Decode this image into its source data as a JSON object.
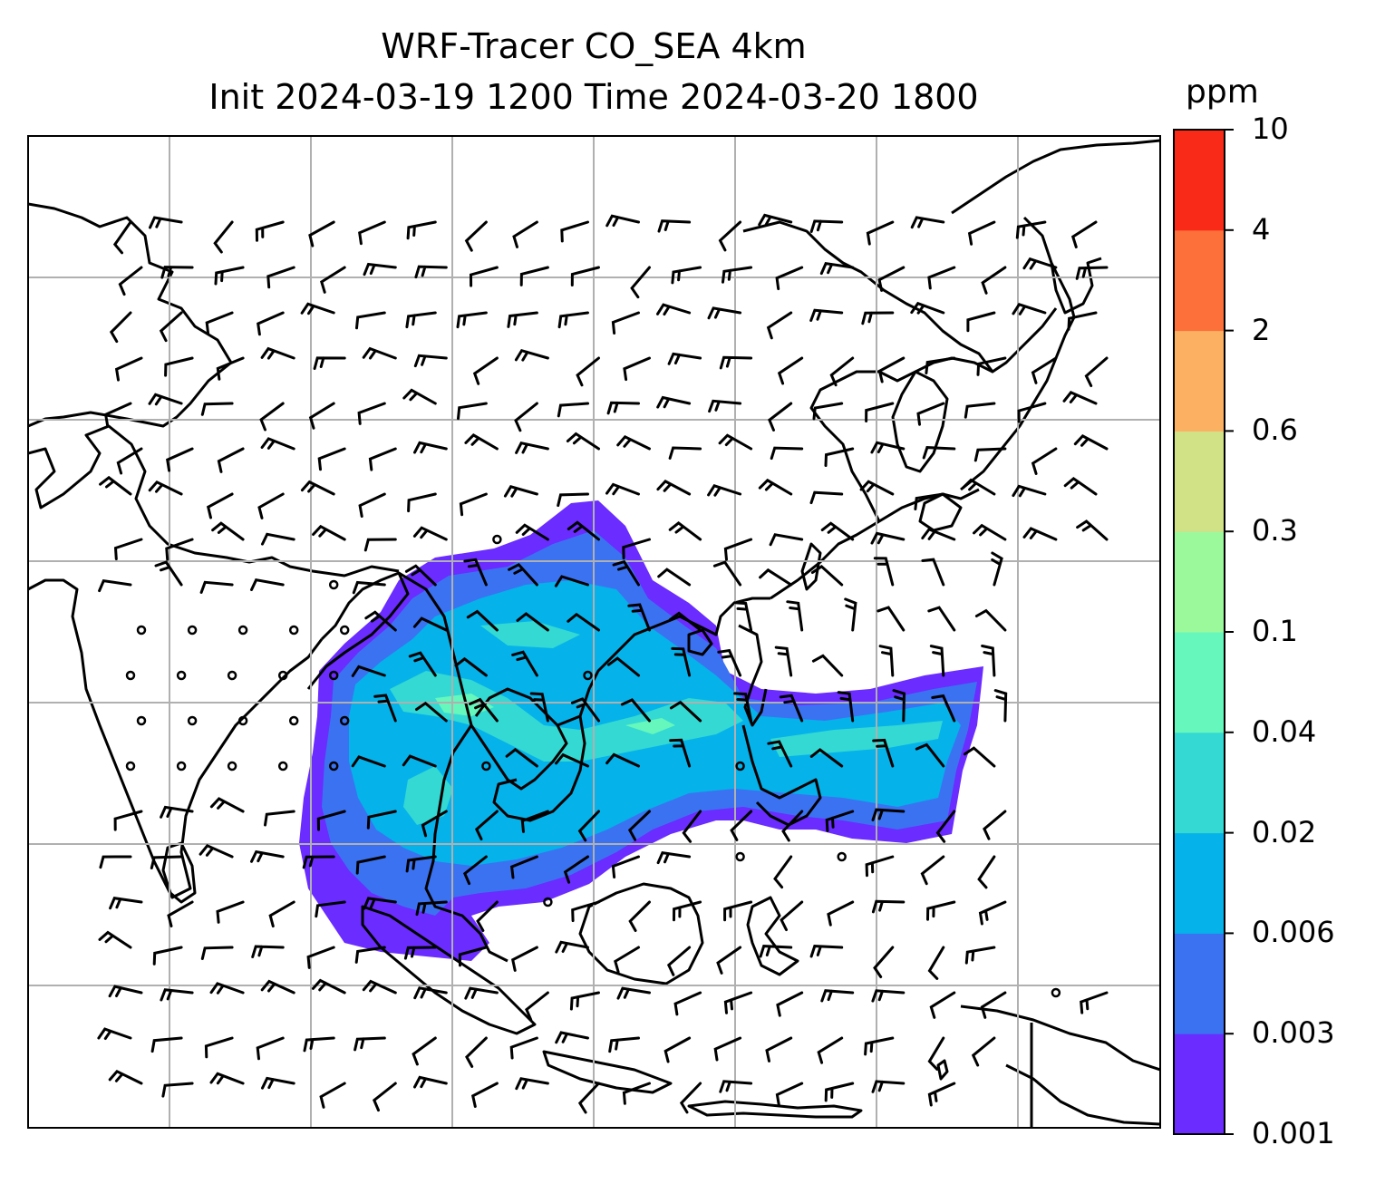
{
  "title": {
    "line1": "WRF-Tracer CO_SEA 4km",
    "line2": "Init 2024-03-19 1200 Time 2024-03-20 1800"
  },
  "colorbar": {
    "unit": "ppm",
    "levels": [
      "0.001",
      "0.003",
      "0.006",
      "0.02",
      "0.04",
      "0.1",
      "0.3",
      "0.6",
      "2",
      "4",
      "10"
    ],
    "colors": [
      "#6a2cff",
      "#3b72f2",
      "#05b2ea",
      "#33d9d2",
      "#66f7bd",
      "#9cf99b",
      "#d0e186",
      "#fcb062",
      "#fe703a",
      "#fa2a18"
    ]
  },
  "map": {
    "background": "#ffffff",
    "coastline_color": "#000000",
    "gridline_color": "#b0b0b0",
    "wind_barb_color": "#000000"
  }
}
